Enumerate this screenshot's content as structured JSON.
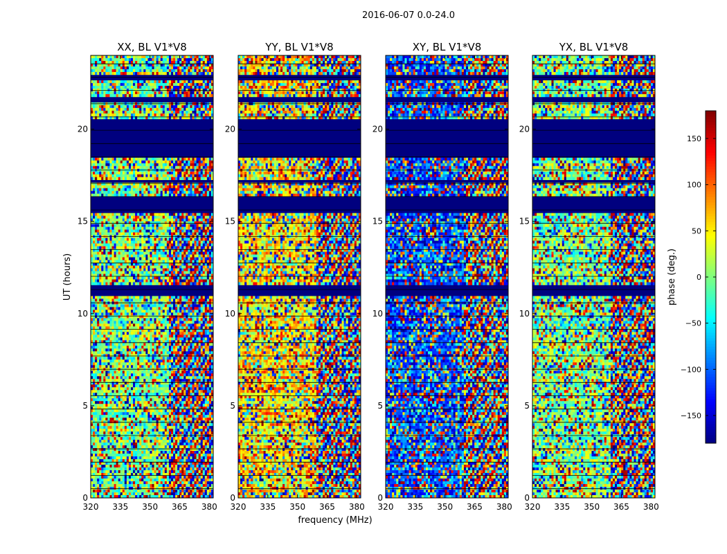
{
  "chart_data": {
    "type": "heatmap",
    "suptitle": "2016-06-07 0.0-24.0",
    "xlabel": "frequency (MHz)",
    "ylabel": "UT (hours)",
    "xlim": [
      320,
      382
    ],
    "ylim": [
      0,
      24
    ],
    "xticks": [
      320,
      335,
      350,
      365,
      380
    ],
    "yticks": [
      0,
      5,
      10,
      15,
      20
    ],
    "grid": false,
    "panels": [
      {
        "title": "XX, BL V1*V8",
        "polarization": "XX",
        "bias_deg": 0
      },
      {
        "title": "YY, BL V1*V8",
        "polarization": "YY",
        "bias_deg": 55
      },
      {
        "title": "XY, BL V1*V8",
        "polarization": "XY",
        "bias_deg": -110
      },
      {
        "title": "YX, BL V1*V8",
        "polarization": "YX",
        "bias_deg": 0
      }
    ],
    "flagged_ut_ranges": [
      [
        18.5,
        20.5
      ],
      [
        15.5,
        16.4
      ],
      [
        10.9,
        11.6
      ],
      [
        22.6,
        22.9
      ],
      [
        21.4,
        21.8
      ],
      [
        17.1,
        17.3
      ]
    ],
    "flag_line_interval_ut": 0.3,
    "colorbar": {
      "label": "phase (deg.)",
      "range": [
        -180,
        180
      ],
      "ticks": [
        -150,
        -100,
        -50,
        0,
        50,
        100,
        150
      ],
      "colormap": "jet",
      "jet_stops": [
        "#00007f",
        "#0000ff",
        "#007fff",
        "#00ffff",
        "#7fff7f",
        "#ffff00",
        "#ff7f00",
        "#ff0000",
        "#7f0000"
      ]
    },
    "colors": {
      "flagged": "#00007f",
      "zero_phase": "#80ff80",
      "axes": "#000000"
    }
  }
}
